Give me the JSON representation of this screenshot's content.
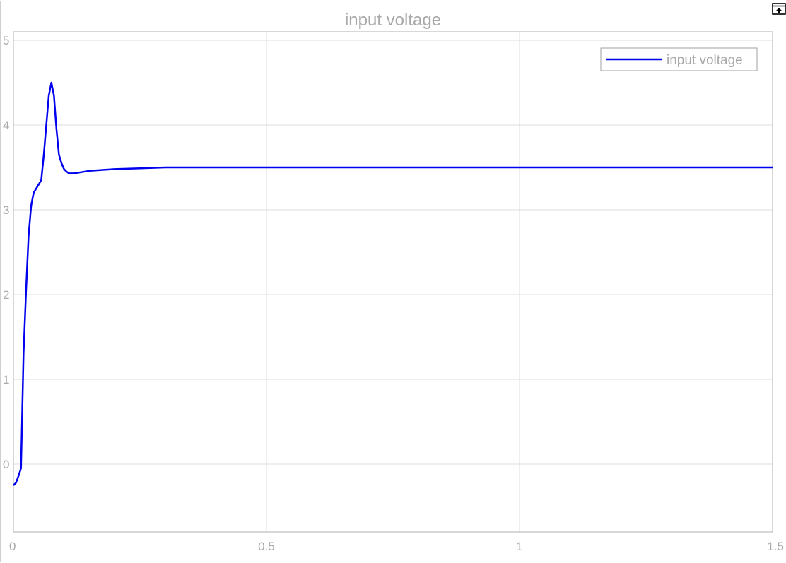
{
  "window": {
    "undock_icon": "undock-icon"
  },
  "chart_data": {
    "type": "line",
    "title": "input voltage",
    "xlabel": "",
    "ylabel": "",
    "xlim": [
      0,
      1.5
    ],
    "ylim": [
      -0.8,
      5.1
    ],
    "xticks": [
      0,
      0.5,
      1,
      1.5
    ],
    "xtick_labels": [
      "0",
      "0.5",
      "1",
      "1.5"
    ],
    "yticks": [
      0,
      1,
      2,
      3,
      4,
      5
    ],
    "ytick_labels": [
      "0",
      "1",
      "2",
      "3",
      "4",
      "5"
    ],
    "grid": true,
    "legend": {
      "position": "top-right",
      "entries": [
        "input voltage"
      ]
    },
    "colors": {
      "line": "#0000ee",
      "grid": "#dcdcdc",
      "axes": "#b0b0b0",
      "text": "#a8a8a8"
    },
    "series": [
      {
        "name": "input voltage",
        "x": [
          0,
          0.005,
          0.01,
          0.015,
          0.017,
          0.02,
          0.025,
          0.03,
          0.035,
          0.04,
          0.045,
          0.05,
          0.055,
          0.06,
          0.065,
          0.07,
          0.075,
          0.08,
          0.085,
          0.09,
          0.095,
          0.1,
          0.105,
          0.11,
          0.12,
          0.13,
          0.15,
          0.2,
          0.25,
          0.3,
          0.4,
          0.5,
          0.7,
          1.0,
          1.25,
          1.5
        ],
        "y": [
          -0.25,
          -0.22,
          -0.14,
          -0.05,
          0.5,
          1.3,
          2.05,
          2.7,
          3.05,
          3.2,
          3.25,
          3.3,
          3.35,
          3.65,
          4.0,
          4.35,
          4.5,
          4.35,
          3.95,
          3.65,
          3.55,
          3.48,
          3.45,
          3.43,
          3.43,
          3.44,
          3.46,
          3.48,
          3.49,
          3.5,
          3.5,
          3.5,
          3.5,
          3.5,
          3.5,
          3.5
        ]
      }
    ]
  }
}
